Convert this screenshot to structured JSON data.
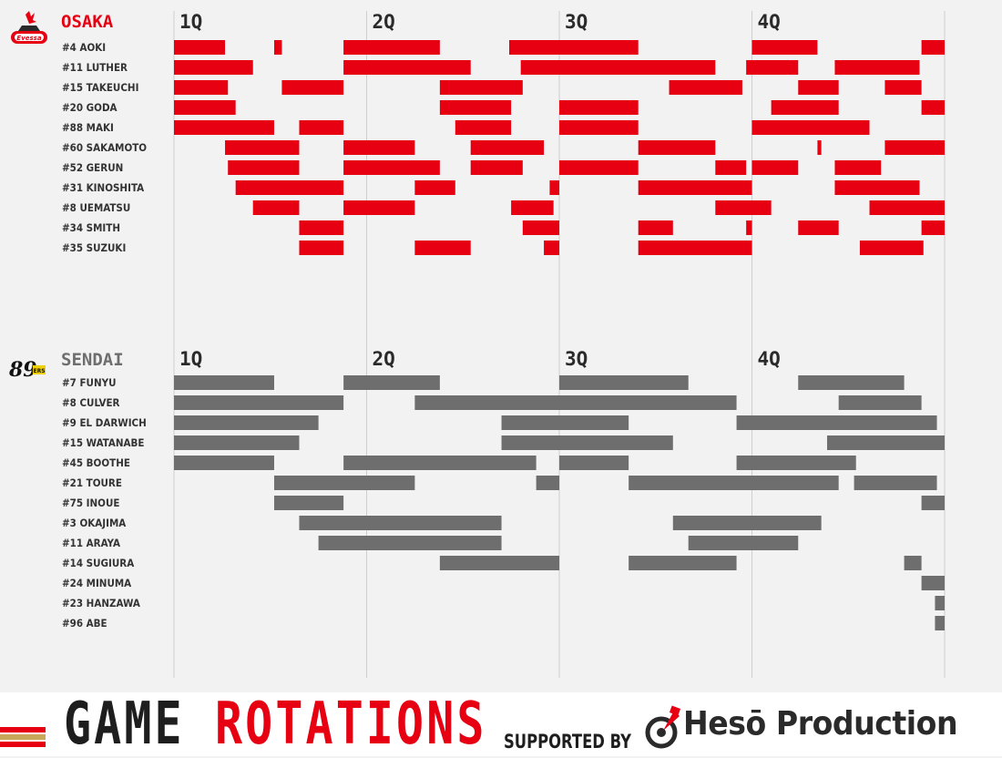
{
  "chart_data": {
    "type": "timeline",
    "title": "GAME ROTATIONS",
    "x_unit": "game minutes",
    "xlim": [
      0,
      40
    ],
    "quarter_labels": [
      "1Q",
      "2Q",
      "3Q",
      "4Q"
    ],
    "quarter_starts": [
      0,
      10,
      20,
      30
    ],
    "teams": [
      {
        "name": "OSAKA",
        "color": "#e60012",
        "logo": "osaka-evessa-logo",
        "players": [
          {
            "label": "#4 AOKI",
            "stints": [
              [
                0,
                2.65
              ],
              [
                5.2,
                5.6
              ],
              [
                8.8,
                13.8
              ],
              [
                17.4,
                24.1
              ],
              [
                30.0,
                33.4
              ],
              [
                38.8,
                40
              ]
            ]
          },
          {
            "label": "#11 LUTHER",
            "stints": [
              [
                0,
                4.1
              ],
              [
                8.8,
                15.4
              ],
              [
                18.0,
                28.1
              ],
              [
                29.7,
                32.4
              ],
              [
                34.3,
                38.7
              ]
            ]
          },
          {
            "label": "#15 TAKEUCHI",
            "stints": [
              [
                0,
                2.8
              ],
              [
                5.6,
                8.8
              ],
              [
                13.8,
                18.1
              ],
              [
                25.7,
                29.5
              ],
              [
                32.4,
                34.5
              ],
              [
                36.9,
                38.8
              ]
            ]
          },
          {
            "label": "#20 GODA",
            "stints": [
              [
                0,
                3.2
              ],
              [
                13.8,
                17.5
              ],
              [
                20.0,
                24.1
              ],
              [
                31.0,
                34.5
              ],
              [
                38.8,
                40
              ]
            ]
          },
          {
            "label": "#88 MAKI",
            "stints": [
              [
                0,
                5.2
              ],
              [
                6.5,
                8.8
              ],
              [
                14.6,
                17.5
              ],
              [
                20.0,
                24.1
              ],
              [
                30.0,
                36.1
              ]
            ]
          },
          {
            "label": "#60 SAKAMOTO",
            "stints": [
              [
                2.65,
                6.5
              ],
              [
                8.8,
                12.5
              ],
              [
                15.4,
                19.2
              ],
              [
                24.1,
                28.1
              ],
              [
                33.4,
                33.6
              ],
              [
                36.9,
                40
              ]
            ]
          },
          {
            "label": "#52 GERUN",
            "stints": [
              [
                2.8,
                6.5
              ],
              [
                8.8,
                13.8
              ],
              [
                15.4,
                18.1
              ],
              [
                20.0,
                24.1
              ],
              [
                28.1,
                29.7
              ],
              [
                30.0,
                32.4
              ],
              [
                34.3,
                36.7
              ]
            ]
          },
          {
            "label": "#31 KINOSHITA",
            "stints": [
              [
                3.2,
                8.8
              ],
              [
                12.5,
                14.6
              ],
              [
                19.5,
                20.0
              ],
              [
                24.1,
                30.0
              ],
              [
                34.3,
                38.7
              ]
            ]
          },
          {
            "label": "#8 UEMATSU",
            "stints": [
              [
                4.1,
                6.5
              ],
              [
                8.8,
                12.5
              ],
              [
                17.5,
                19.7
              ],
              [
                28.1,
                31.0
              ],
              [
                36.1,
                40
              ]
            ]
          },
          {
            "label": "#34 SMITH",
            "stints": [
              [
                6.5,
                8.8
              ],
              [
                18.1,
                20.0
              ],
              [
                24.1,
                25.9
              ],
              [
                29.7,
                30.0
              ],
              [
                32.4,
                34.5
              ],
              [
                38.8,
                40
              ]
            ]
          },
          {
            "label": "#35 SUZUKI",
            "stints": [
              [
                6.5,
                8.8
              ],
              [
                12.5,
                15.4
              ],
              [
                19.2,
                20.0
              ],
              [
                24.1,
                30.0
              ],
              [
                35.6,
                38.9
              ]
            ]
          }
        ]
      },
      {
        "name": "SENDAI",
        "color": "#6e6e6e",
        "logo": "sendai-89ers-logo",
        "players": [
          {
            "label": "#7 FUNYU",
            "stints": [
              [
                0,
                5.2
              ],
              [
                8.8,
                13.8
              ],
              [
                20.0,
                26.7
              ],
              [
                32.4,
                37.9
              ]
            ]
          },
          {
            "label": "#8 CULVER",
            "stints": [
              [
                0,
                8.8
              ],
              [
                12.5,
                29.2
              ],
              [
                34.5,
                38.8
              ]
            ]
          },
          {
            "label": "#9 EL DARWICH",
            "stints": [
              [
                0,
                7.5
              ],
              [
                17.0,
                23.6
              ],
              [
                29.2,
                39.6
              ]
            ]
          },
          {
            "label": "#15 WATANABE",
            "stints": [
              [
                0,
                6.5
              ],
              [
                17.0,
                25.9
              ],
              [
                33.9,
                40
              ]
            ]
          },
          {
            "label": "#45 BOOTHE",
            "stints": [
              [
                0,
                5.2
              ],
              [
                8.8,
                18.8
              ],
              [
                20.0,
                23.6
              ],
              [
                29.2,
                35.4
              ]
            ]
          },
          {
            "label": "#21 TOURE",
            "stints": [
              [
                5.2,
                12.5
              ],
              [
                18.8,
                20.0
              ],
              [
                23.6,
                34.5
              ],
              [
                35.3,
                39.6
              ]
            ]
          },
          {
            "label": "#75 INOUE",
            "stints": [
              [
                5.2,
                8.8
              ],
              [
                38.8,
                40
              ]
            ]
          },
          {
            "label": "#3 OKAJIMA",
            "stints": [
              [
                6.5,
                17.0
              ],
              [
                25.9,
                33.6
              ]
            ]
          },
          {
            "label": "#11 ARAYA",
            "stints": [
              [
                7.5,
                17.0
              ],
              [
                26.7,
                32.4
              ]
            ]
          },
          {
            "label": "#14 SUGIURA",
            "stints": [
              [
                13.8,
                20.0
              ],
              [
                23.6,
                29.2
              ],
              [
                37.9,
                38.8
              ]
            ]
          },
          {
            "label": "#24 MINUMA",
            "stints": [
              [
                38.8,
                40
              ]
            ]
          },
          {
            "label": "#23 HANZAWA",
            "stints": [
              [
                39.5,
                40
              ]
            ]
          },
          {
            "label": "#96 ABE",
            "stints": [
              [
                39.5,
                40
              ]
            ]
          }
        ]
      }
    ]
  },
  "footer": {
    "title_word1": "GAME",
    "title_word2": "ROTATIONS",
    "supported_by": "SUPPORTED BY",
    "sponsor": "Hesō Production"
  },
  "colors": {
    "accent_red": "#e60012",
    "dark": "#1e1e1e",
    "bench_gray": "#6e6e6e",
    "stripe_gold": "#c8a95a",
    "grid": "#cfcfcf"
  }
}
